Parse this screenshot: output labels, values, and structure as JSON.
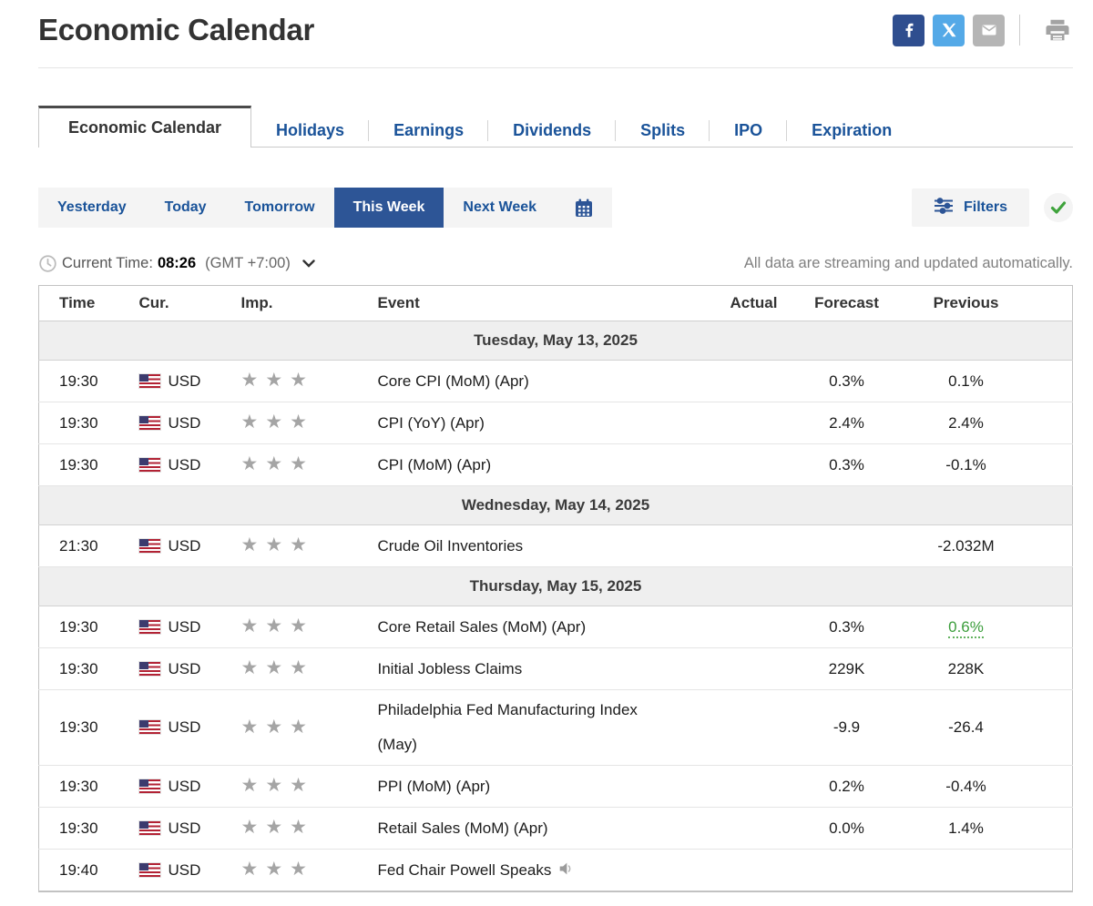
{
  "page": {
    "title": "Economic Calendar"
  },
  "social": {
    "facebook_icon": "facebook",
    "x_icon": "x-twitter",
    "email_icon": "email",
    "print_icon": "printer"
  },
  "tabs": {
    "items": [
      {
        "label": "Economic Calendar",
        "active": true
      },
      {
        "label": "Holidays",
        "active": false
      },
      {
        "label": "Earnings",
        "active": false
      },
      {
        "label": "Dividends",
        "active": false
      },
      {
        "label": "Splits",
        "active": false
      },
      {
        "label": "IPO",
        "active": false
      },
      {
        "label": "Expiration",
        "active": false
      }
    ]
  },
  "range_controls": {
    "buttons": [
      {
        "label": "Yesterday",
        "active": false
      },
      {
        "label": "Today",
        "active": false
      },
      {
        "label": "Tomorrow",
        "active": false
      },
      {
        "label": "This Week",
        "active": true
      },
      {
        "label": "Next Week",
        "active": false
      }
    ],
    "calendar_icon": "calendar-picker",
    "filters_label": "Filters",
    "filters_applied_check": "checkmark"
  },
  "status_bar": {
    "clock_icon": "clock",
    "current_time_label": "Current Time:",
    "current_time": "08:26",
    "timezone": "(GMT +7:00)",
    "streaming_note": "All data are streaming and updated automatically."
  },
  "table": {
    "columns": {
      "time": "Time",
      "currency": "Cur.",
      "importance": "Imp.",
      "event": "Event",
      "actual": "Actual",
      "forecast": "Forecast",
      "previous": "Previous"
    },
    "sections": [
      {
        "date": "Tuesday, May 13, 2025",
        "rows": [
          {
            "time": "19:30",
            "currency": "USD",
            "flag": "us-flag",
            "importance": 3,
            "event": "Core CPI (MoM) (Apr)",
            "actual": "",
            "forecast": "0.3%",
            "previous": "0.1%"
          },
          {
            "time": "19:30",
            "currency": "USD",
            "flag": "us-flag",
            "importance": 3,
            "event": "CPI (YoY) (Apr)",
            "actual": "",
            "forecast": "2.4%",
            "previous": "2.4%"
          },
          {
            "time": "19:30",
            "currency": "USD",
            "flag": "us-flag",
            "importance": 3,
            "event": "CPI (MoM) (Apr)",
            "actual": "",
            "forecast": "0.3%",
            "previous": "-0.1%"
          }
        ]
      },
      {
        "date": "Wednesday, May 14, 2025",
        "rows": [
          {
            "time": "21:30",
            "currency": "USD",
            "flag": "us-flag",
            "importance": 3,
            "event": "Crude Oil Inventories",
            "actual": "",
            "forecast": "",
            "previous": "-2.032M"
          }
        ]
      },
      {
        "date": "Thursday, May 15, 2025",
        "rows": [
          {
            "time": "19:30",
            "currency": "USD",
            "flag": "us-flag",
            "importance": 3,
            "event": "Core Retail Sales (MoM) (Apr)",
            "actual": "",
            "forecast": "0.3%",
            "previous": "0.6%",
            "previous_positive": true
          },
          {
            "time": "19:30",
            "currency": "USD",
            "flag": "us-flag",
            "importance": 3,
            "event": "Initial Jobless Claims",
            "actual": "",
            "forecast": "229K",
            "previous": "228K"
          },
          {
            "time": "19:30",
            "currency": "USD",
            "flag": "us-flag",
            "importance": 3,
            "event": "Philadelphia Fed Manufacturing Index (May)",
            "actual": "",
            "forecast": "-9.9",
            "previous": "-26.4"
          },
          {
            "time": "19:30",
            "currency": "USD",
            "flag": "us-flag",
            "importance": 3,
            "event": "PPI (MoM) (Apr)",
            "actual": "",
            "forecast": "0.2%",
            "previous": "-0.4%"
          },
          {
            "time": "19:30",
            "currency": "USD",
            "flag": "us-flag",
            "importance": 3,
            "event": "Retail Sales (MoM) (Apr)",
            "actual": "",
            "forecast": "0.0%",
            "previous": "1.4%"
          },
          {
            "time": "19:40",
            "currency": "USD",
            "flag": "us-flag",
            "importance": 3,
            "event": "Fed Chair Powell Speaks",
            "speaker_icon": true,
            "actual": "",
            "forecast": "",
            "previous": ""
          }
        ]
      }
    ]
  },
  "colors": {
    "link_blue": "#1a5399",
    "active_button_blue": "#2d5596",
    "positive_green": "#3c9e3c",
    "facebook_blue": "#2f4e8f",
    "x_blue": "#54a9e7",
    "email_gray": "#b5b5b5",
    "day_row_gray": "#efefef",
    "star_gray": "#a5a5a5"
  }
}
